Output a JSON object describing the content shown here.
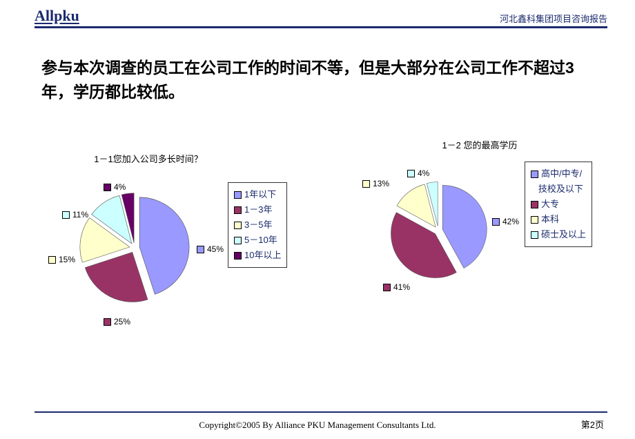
{
  "header": {
    "logo": "Allpku",
    "right": "河北鑫科集团项目咨询报告"
  },
  "title": "参与本次调查的员工在公司工作的时间不等，但是大部分在公司工作不超过3年，学历都比较低。",
  "chart1": {
    "type": "pie",
    "title": "1－1您加入公司多长时间？",
    "stroke": "#ffffff",
    "stroke_width": 4,
    "slices": [
      {
        "label": "1年以下",
        "value": 45,
        "color": "#9999ff",
        "pct": "45%"
      },
      {
        "label": "1－3年",
        "value": 25,
        "color": "#993366",
        "pct": "25%"
      },
      {
        "label": "3－5年",
        "value": 15,
        "color": "#ffffcc",
        "pct": "15%"
      },
      {
        "label": "5－10年",
        "value": 11,
        "color": "#ccffff",
        "pct": "11%"
      },
      {
        "label": "10年以上",
        "value": 4,
        "color": "#660066",
        "pct": "4%"
      }
    ]
  },
  "chart2": {
    "type": "pie",
    "title": "1－2 您的最高学历",
    "stroke": "#ffffff",
    "stroke_width": 4,
    "slices": [
      {
        "label": "高中/中专/技校及以下",
        "value": 42,
        "color": "#9999ff",
        "pct": "42%"
      },
      {
        "label": "大专",
        "value": 41,
        "color": "#993366",
        "pct": "41%"
      },
      {
        "label": "本科",
        "value": 13,
        "color": "#ffffcc",
        "pct": "13%"
      },
      {
        "label": "硕士及以上",
        "value": 4,
        "color": "#ccffff",
        "pct": "4%"
      }
    ]
  },
  "footer": {
    "copyright": "Copyright©2005 By Alliance PKU Management Consultants Ltd.",
    "page": "第2页"
  }
}
